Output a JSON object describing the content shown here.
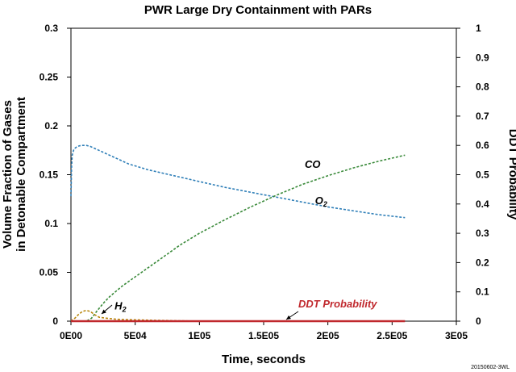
{
  "chart_data": {
    "type": "line",
    "title": "PWR Large Dry Containment with PARs",
    "xlabel": "Time, seconds",
    "ylabel_left_line1": "Volume Fraction of Gases",
    "ylabel_left_line2": "in Detonable Compartment",
    "ylabel_right": "DDT Probability",
    "xlim": [
      0,
      300000
    ],
    "ylim_left": [
      0,
      0.3
    ],
    "ylim_right": [
      0,
      1
    ],
    "x_ticks": [
      0,
      50000,
      100000,
      150000,
      200000,
      250000,
      300000
    ],
    "x_tick_labels": [
      "0E00",
      "5E04",
      "1E05",
      "1.5E05",
      "2E05",
      "2.5E05",
      "3E05"
    ],
    "y_left_ticks": [
      0,
      0.05,
      0.1,
      0.15,
      0.2,
      0.25,
      0.3
    ],
    "y_left_tick_labels": [
      "0",
      "0.05",
      "0.1",
      "0.15",
      "0.2",
      "0.25",
      "0.3"
    ],
    "y_right_ticks": [
      0,
      0.1,
      0.2,
      0.3,
      0.4,
      0.5,
      0.6,
      0.7,
      0.8,
      0.9,
      1
    ],
    "y_right_tick_labels": [
      "0",
      "0.1",
      "0.2",
      "0.3",
      "0.4",
      "0.5",
      "0.6",
      "0.7",
      "0.8",
      "0.9",
      "1"
    ],
    "grid": false,
    "legend": "none",
    "series": [
      {
        "name": "O2",
        "axis": "left",
        "color": "#2f7fb8",
        "x": [
          0,
          500,
          1000,
          2000,
          3000,
          5000,
          8000,
          12000,
          15000,
          20000,
          30000,
          45000,
          60000,
          80000,
          100000,
          120000,
          140000,
          160000,
          180000,
          200000,
          220000,
          240000,
          260000
        ],
        "y": [
          0.128,
          0.158,
          0.17,
          0.175,
          0.177,
          0.179,
          0.18,
          0.18,
          0.179,
          0.176,
          0.17,
          0.161,
          0.155,
          0.149,
          0.143,
          0.137,
          0.132,
          0.127,
          0.122,
          0.117,
          0.113,
          0.109,
          0.106
        ]
      },
      {
        "name": "CO",
        "axis": "left",
        "color": "#3a8a3a",
        "x": [
          0,
          12000,
          16000,
          20000,
          25000,
          30000,
          40000,
          55000,
          70000,
          85000,
          100000,
          120000,
          140000,
          160000,
          180000,
          200000,
          220000,
          240000,
          260000
        ],
        "y": [
          0,
          0,
          0.003,
          0.01,
          0.018,
          0.025,
          0.036,
          0.05,
          0.064,
          0.078,
          0.09,
          0.104,
          0.117,
          0.129,
          0.14,
          0.149,
          0.157,
          0.164,
          0.17
        ]
      },
      {
        "name": "H2",
        "axis": "left",
        "color": "#b8860b",
        "x": [
          0,
          3000,
          6000,
          9000,
          12000,
          15000,
          18000,
          22000,
          28000,
          35000,
          45000,
          60000,
          80000,
          100000
        ],
        "y": [
          0,
          0.003,
          0.007,
          0.01,
          0.011,
          0.01,
          0.007,
          0.004,
          0.003,
          0.002,
          0.0015,
          0.001,
          0.0005,
          0
        ]
      },
      {
        "name": "DDT Probability",
        "axis": "right",
        "color": "#c0282d",
        "x": [
          0,
          260000
        ],
        "y": [
          0,
          0
        ]
      }
    ],
    "annotations": [
      {
        "text": "CO",
        "x": 182000,
        "y": 0.157,
        "axis": "left"
      },
      {
        "text": "O",
        "sub": "2",
        "x": 190000,
        "y": 0.12,
        "axis": "left"
      },
      {
        "text": "H",
        "sub": "2",
        "x": 34000,
        "y": 0.012,
        "axis": "left"
      },
      {
        "text": "DDT Probability",
        "x": 177000,
        "y": 0.014,
        "axis": "left"
      }
    ],
    "footnote": "20150602-3WL"
  }
}
